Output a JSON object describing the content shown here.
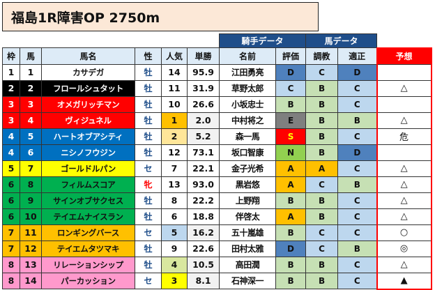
{
  "title": "福島1R障害OP 2750m",
  "group_headers": {
    "jockey": "騎手データ",
    "horse": "馬データ"
  },
  "headers": [
    "枠",
    "馬",
    "馬名",
    "性",
    "人気",
    "単勝",
    "名前",
    "評価",
    "調教",
    "適正",
    "予想"
  ],
  "waku_colors": {
    "1": {
      "bg": "#ffffff",
      "fg": "#111111"
    },
    "2": {
      "bg": "#000000",
      "fg": "#ffffff"
    },
    "3": {
      "bg": "#ff0000",
      "fg": "#ffffff"
    },
    "4": {
      "bg": "#0070c0",
      "fg": "#ffffff"
    },
    "5": {
      "bg": "#ffff00",
      "fg": "#111111"
    },
    "6": {
      "bg": "#00b050",
      "fg": "#111111"
    },
    "7": {
      "bg": "#ffc000",
      "fg": "#111111"
    },
    "8": {
      "bg": "#ff99cc",
      "fg": "#111111"
    }
  },
  "grade_colors": {
    "A": "#ffc000",
    "B": "#c6e0b4",
    "C": "#bdd7ee",
    "D": "#4f81bd",
    "E": "#7f7f7f",
    "S": "#ff0000",
    "N": "#92d050"
  },
  "pop_colors": {
    "1": "#ffc000",
    "2": "#ffe699",
    "3": "#ffff00",
    "4": "#d9e79f",
    "5": "#bdd7ee"
  },
  "rows": [
    {
      "waku": "1",
      "uma": "1",
      "name": "カサデガ",
      "sex": "牡",
      "pop": "14",
      "odds": "95.9",
      "jockey": "江田勇亮",
      "eval": "D",
      "chokyo": "C",
      "tekisei": "D",
      "yoso": ""
    },
    {
      "waku": "2",
      "uma": "2",
      "name": "フロールシュタット",
      "sex": "牡",
      "pop": "11",
      "odds": "31.9",
      "jockey": "草野太郎",
      "eval": "C",
      "chokyo": "B",
      "tekisei": "C",
      "yoso": "△"
    },
    {
      "waku": "3",
      "uma": "3",
      "name": "オメガリッチマン",
      "sex": "牡",
      "pop": "10",
      "odds": "26.6",
      "jockey": "小坂忠士",
      "eval": "B",
      "chokyo": "B",
      "tekisei": "C",
      "yoso": ""
    },
    {
      "waku": "3",
      "uma": "4",
      "name": "ヴィジュネル",
      "sex": "牡",
      "pop": "1",
      "odds": "2.0",
      "jockey": "中村将之",
      "eval": "E",
      "chokyo": "B",
      "tekisei": "B",
      "yoso": "△"
    },
    {
      "waku": "4",
      "uma": "5",
      "name": "ハートオブアシティ",
      "sex": "牡",
      "pop": "2",
      "odds": "5.2",
      "jockey": "森一馬",
      "eval": "S",
      "chokyo": "B",
      "tekisei": "C",
      "yoso": "危"
    },
    {
      "waku": "4",
      "uma": "6",
      "name": "ニシノフウジン",
      "sex": "牡",
      "pop": "12",
      "odds": "73.1",
      "jockey": "坂口智康",
      "eval": "N",
      "chokyo": "B",
      "tekisei": "D",
      "yoso": ""
    },
    {
      "waku": "5",
      "uma": "7",
      "name": "ゴールドルパン",
      "sex": "セ",
      "pop": "7",
      "odds": "22.1",
      "jockey": "金子光希",
      "eval": "A",
      "chokyo": "A",
      "tekisei": "C",
      "yoso": "△"
    },
    {
      "waku": "6",
      "uma": "8",
      "name": "フィルムスコア",
      "sex": "牝",
      "pop": "13",
      "odds": "93.0",
      "jockey": "黒岩悠",
      "eval": "A",
      "chokyo": "C",
      "tekisei": "B",
      "yoso": "△"
    },
    {
      "waku": "6",
      "uma": "9",
      "name": "サインオブサクセス",
      "sex": "牡",
      "pop": "8",
      "odds": "22.2",
      "jockey": "上野翔",
      "eval": "B",
      "chokyo": "B",
      "tekisei": "C",
      "yoso": "△"
    },
    {
      "waku": "6",
      "uma": "10",
      "name": "テイエムナイスラン",
      "sex": "牡",
      "pop": "6",
      "odds": "18.8",
      "jockey": "伴啓太",
      "eval": "A",
      "chokyo": "B",
      "tekisei": "C",
      "yoso": "△"
    },
    {
      "waku": "7",
      "uma": "11",
      "name": "ロンギングバース",
      "sex": "セ",
      "pop": "5",
      "odds": "16.2",
      "jockey": "五十嵐雄",
      "eval": "B",
      "chokyo": "C",
      "tekisei": "C",
      "yoso": "○"
    },
    {
      "waku": "7",
      "uma": "12",
      "name": "テイエムタツマキ",
      "sex": "牡",
      "pop": "9",
      "odds": "22.6",
      "jockey": "田村太雅",
      "eval": "D",
      "chokyo": "C",
      "tekisei": "B",
      "yoso": "◎"
    },
    {
      "waku": "8",
      "uma": "13",
      "name": "リレーションシップ",
      "sex": "牡",
      "pop": "4",
      "odds": "10.5",
      "jockey": "高田潤",
      "eval": "B",
      "chokyo": "B",
      "tekisei": "C",
      "yoso": "△"
    },
    {
      "waku": "8",
      "uma": "14",
      "name": "パーカッション",
      "sex": "セ",
      "pop": "3",
      "odds": "8.1",
      "jockey": "石神深一",
      "eval": "B",
      "chokyo": "B",
      "tekisei": "C",
      "yoso": "▲"
    }
  ]
}
